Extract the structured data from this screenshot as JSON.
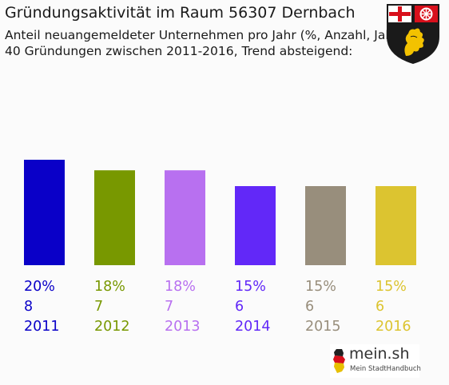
{
  "header": {
    "title": "Gründungsaktivität im Raum 56307 Dernbach",
    "subtitle_1": "Anteil neuangemeldeter Unternehmen pro Jahr (%, Anzahl, Jahr)",
    "subtitle_2": "40 Gründungen zwischen 2011-2016, Trend absteigend:"
  },
  "logo": {
    "name": "mein.sh",
    "tagline": "Mein StadtHandbuch"
  },
  "chart_data": {
    "type": "bar",
    "title": "Gründungsaktivität im Raum 56307 Dernbach",
    "categories": [
      "2011",
      "2012",
      "2013",
      "2014",
      "2015",
      "2016"
    ],
    "values": [
      20,
      18,
      18,
      15,
      15,
      15
    ],
    "percent_labels": [
      "20%",
      "18%",
      "18%",
      "15%",
      "15%",
      "15%"
    ],
    "counts": [
      8,
      7,
      7,
      6,
      6,
      6
    ],
    "colors": [
      "#0a00c8",
      "#789800",
      "#b870f0",
      "#6228f8",
      "#988e7c",
      "#dcc430"
    ],
    "ylim": [
      0,
      20
    ],
    "grid": false,
    "xlabel": "",
    "ylabel": ""
  }
}
